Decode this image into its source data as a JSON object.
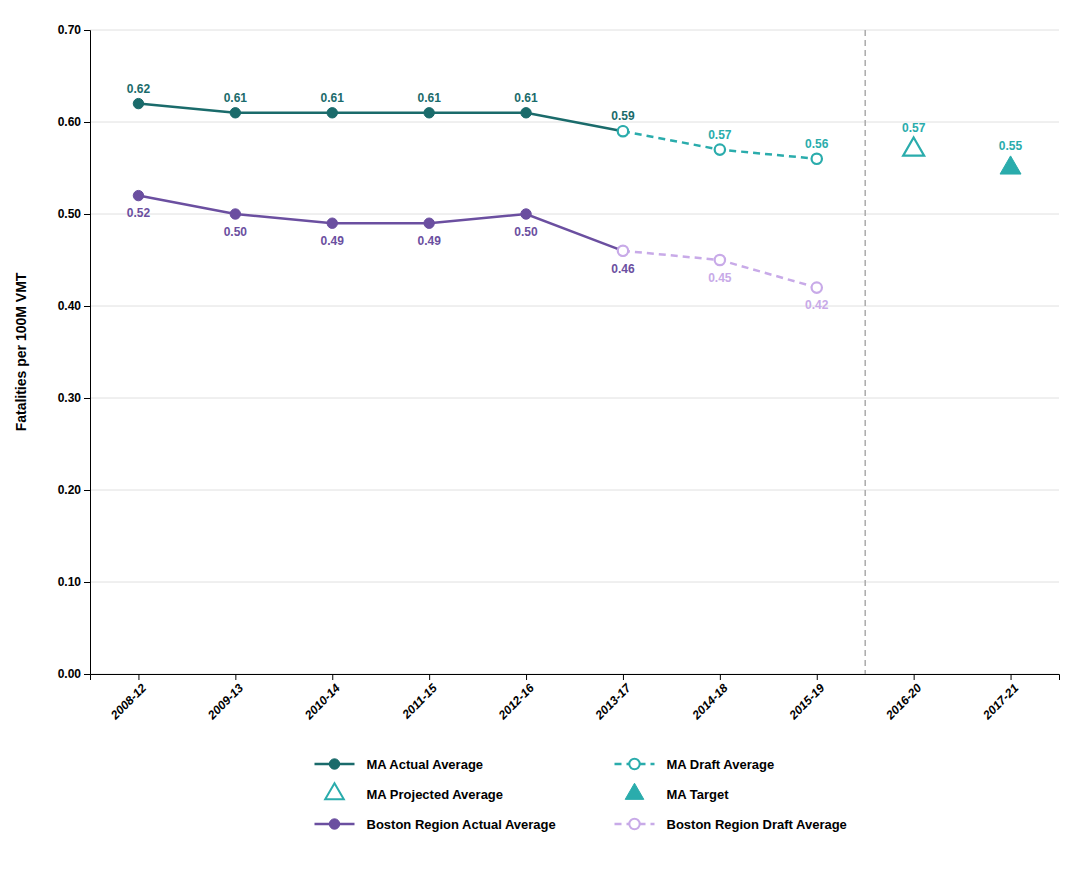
{
  "chart_data": {
    "type": "line",
    "ylabel": "Fatalities per 100M VMT",
    "categories": [
      "2008-12",
      "2009-13",
      "2010-14",
      "2011-15",
      "2012-16",
      "2013-17",
      "2014-18",
      "2015-19",
      "2016-20",
      "2017-21"
    ],
    "ylim": [
      0.0,
      0.7
    ],
    "yticks": [
      {
        "value": 0.0,
        "label": "0.00"
      },
      {
        "value": 0.1,
        "label": "0.10"
      },
      {
        "value": 0.2,
        "label": "0.20"
      },
      {
        "value": 0.3,
        "label": "0.30"
      },
      {
        "value": 0.4,
        "label": "0.40"
      },
      {
        "value": 0.5,
        "label": "0.50"
      },
      {
        "value": 0.6,
        "label": "0.60"
      },
      {
        "value": 0.7,
        "label": "0.70"
      }
    ],
    "grid": true,
    "legend": "bottom",
    "data_labels": true,
    "series": [
      {
        "name": "MA Actual Average",
        "color": "#1a6b6b",
        "type": "line",
        "marker": "circle",
        "line_style": "solid",
        "values": [
          0.62,
          0.61,
          0.61,
          0.61,
          0.61,
          0.59,
          null,
          null,
          null,
          null
        ],
        "value_labels": [
          "0.62",
          "0.61",
          "0.61",
          "0.61",
          "0.61",
          "0.59",
          null,
          null,
          null,
          null
        ]
      },
      {
        "name": "MA Draft Average",
        "color": "#2aacac",
        "type": "line",
        "marker": "open-circle",
        "line_style": "dashed",
        "values": [
          null,
          null,
          null,
          null,
          null,
          0.59,
          0.57,
          0.56,
          null,
          null
        ],
        "value_labels": [
          null,
          null,
          null,
          null,
          null,
          null,
          "0.57",
          "0.56",
          null,
          null
        ]
      },
      {
        "name": "MA Projected Average",
        "color": "#2aacac",
        "type": "scatter",
        "marker": "open-triangle",
        "line_style": "none",
        "values": [
          null,
          null,
          null,
          null,
          null,
          null,
          null,
          null,
          0.57,
          null
        ],
        "value_labels": [
          null,
          null,
          null,
          null,
          null,
          null,
          null,
          null,
          "0.57",
          null
        ]
      },
      {
        "name": "MA Target",
        "color": "#2aacac",
        "type": "scatter",
        "marker": "triangle",
        "line_style": "none",
        "values": [
          null,
          null,
          null,
          null,
          null,
          null,
          null,
          null,
          null,
          0.55
        ],
        "value_labels": [
          null,
          null,
          null,
          null,
          null,
          null,
          null,
          null,
          null,
          "0.55"
        ]
      },
      {
        "name": "Boston Region Actual Average",
        "color": "#6b4fa0",
        "type": "line",
        "marker": "circle",
        "line_style": "solid",
        "values": [
          0.52,
          0.5,
          0.49,
          0.49,
          0.5,
          0.46,
          null,
          null,
          null,
          null
        ],
        "value_labels": [
          "0.52",
          "0.50",
          "0.49",
          "0.49",
          "0.50",
          "0.46",
          null,
          null,
          null,
          null
        ]
      },
      {
        "name": "Boston Region Draft Average",
        "color": "#c8aae8",
        "type": "line",
        "marker": "open-circle",
        "line_style": "dashed",
        "values": [
          null,
          null,
          null,
          null,
          null,
          0.46,
          0.45,
          0.42,
          null,
          null
        ],
        "value_labels": [
          null,
          null,
          null,
          null,
          null,
          null,
          "0.45",
          "0.42",
          null,
          null
        ]
      }
    ]
  }
}
